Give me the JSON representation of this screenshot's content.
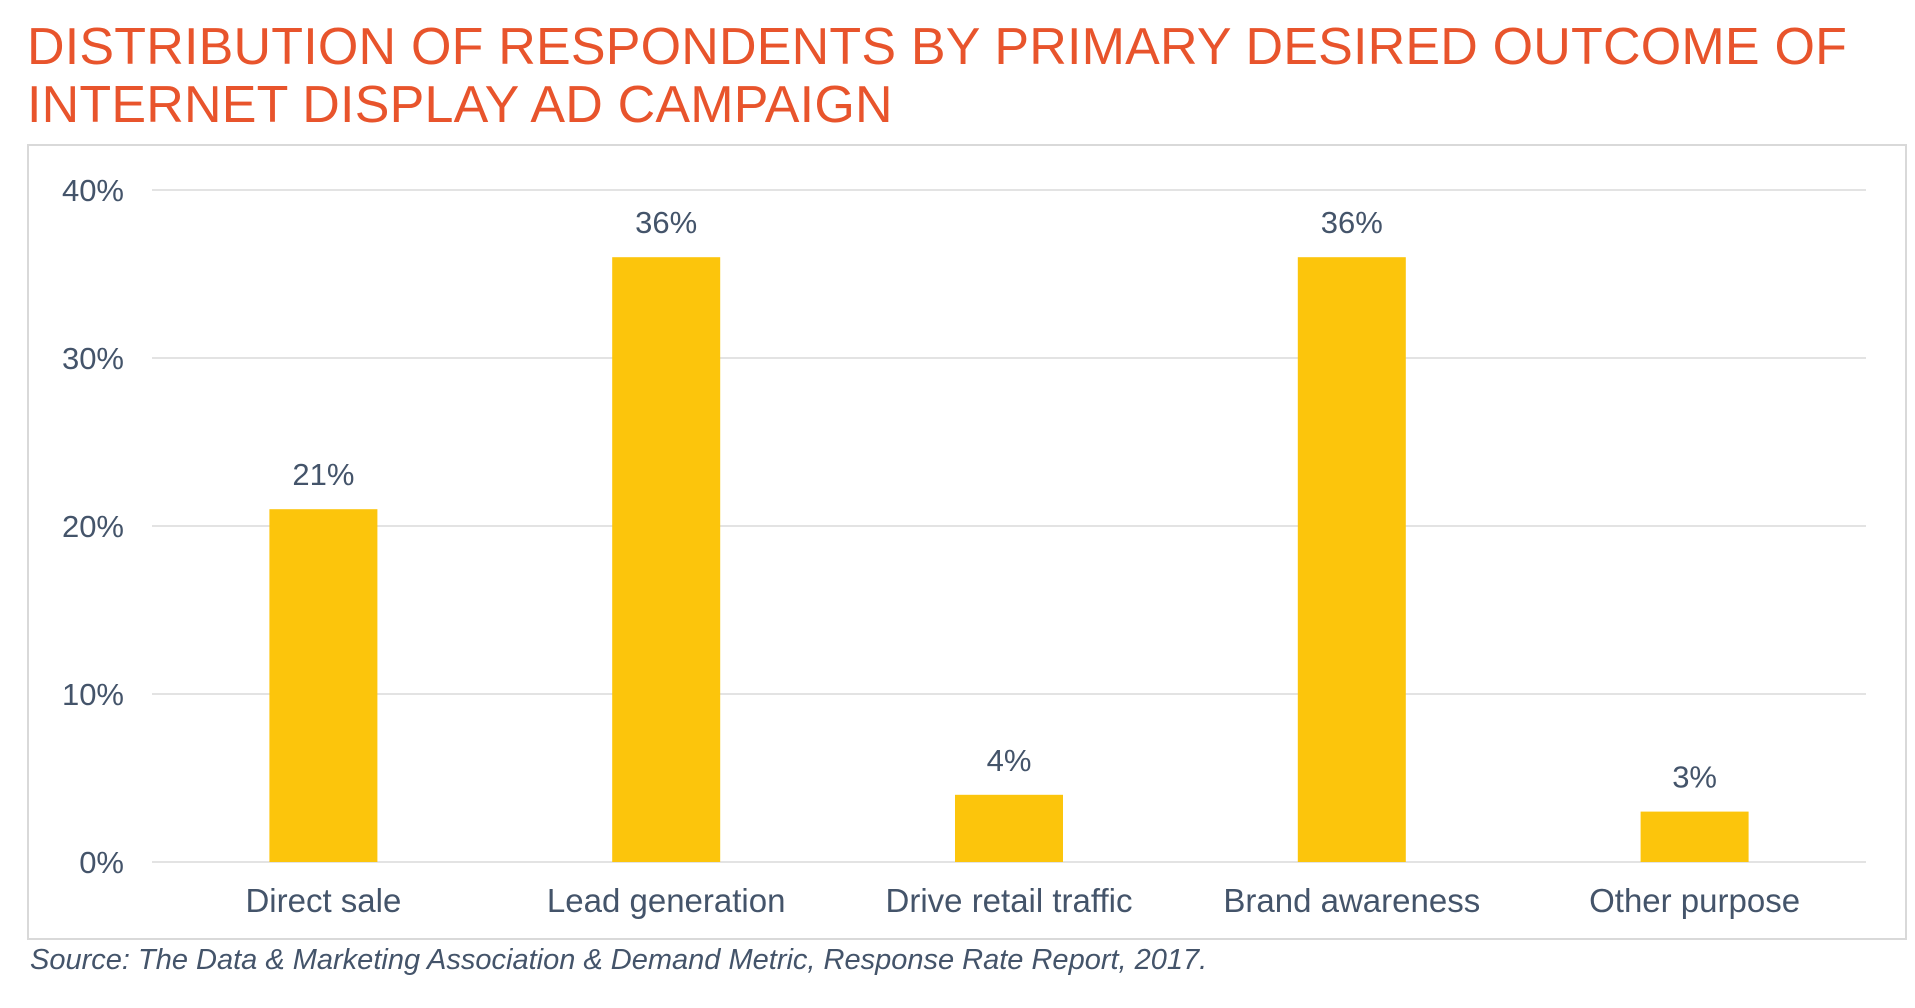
{
  "chart_data": {
    "type": "bar",
    "title": "DISTRIBUTION OF RESPONDENTS BY PRIMARY DESIRED OUTCOME OF INTERNET DISPLAY AD CAMPAIGN",
    "categories": [
      "Direct sale",
      "Lead generation",
      "Drive retail traffic",
      "Brand awareness",
      "Other purpose"
    ],
    "values": [
      21,
      36,
      4,
      36,
      3
    ],
    "data_labels": [
      "21%",
      "36%",
      "4%",
      "36%",
      "3%"
    ],
    "ylim": [
      0,
      40
    ],
    "yticks": [
      0,
      10,
      20,
      30,
      40
    ],
    "ytick_labels": [
      "0%",
      "10%",
      "20%",
      "30%",
      "40%"
    ],
    "xlabel": "",
    "ylabel": "",
    "grid": true,
    "bar_color": "#fcc50c",
    "grid_color": "#e3e3e3",
    "text_color": "#44546a",
    "title_color": "#e8542c"
  },
  "source": "Source: The Data & Marketing Association & Demand Metric, Response Rate Report, 2017."
}
